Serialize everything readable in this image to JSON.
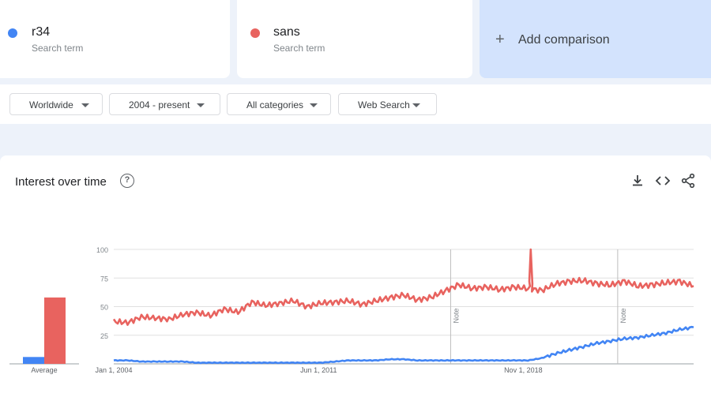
{
  "terms": [
    {
      "name": "r34",
      "subtitle": "Search term",
      "color": "#4285f4"
    },
    {
      "name": "sans",
      "subtitle": "Search term",
      "color": "#e8635f"
    }
  ],
  "add_comparison": {
    "label": "Add comparison",
    "icon": "plus-icon"
  },
  "filters": {
    "region": "Worldwide",
    "time": "2004 - present",
    "category": "All categories",
    "property": "Web Search"
  },
  "panel": {
    "title": "Interest over time",
    "icons": [
      "help-icon",
      "download-icon",
      "embed-code-icon",
      "share-icon"
    ]
  },
  "chart_data": [
    {
      "type": "bar",
      "categories": [
        "Average"
      ],
      "series": [
        {
          "name": "r34",
          "values": [
            6
          ],
          "color": "#4285f4"
        },
        {
          "name": "sans",
          "values": [
            58
          ],
          "color": "#e8635f"
        }
      ],
      "ylim": [
        0,
        100
      ]
    },
    {
      "type": "line",
      "x_tick_labels": [
        "Jan 1, 2004",
        "Jun 1, 2011",
        "Nov 1, 2018"
      ],
      "y_ticks": [
        25,
        50,
        75,
        100
      ],
      "ylim": [
        0,
        100
      ],
      "grid": true,
      "annotations": [
        "Note",
        "Note"
      ],
      "x": [
        2004.0,
        2004.5,
        2005.0,
        2005.5,
        2006.0,
        2006.5,
        2007.0,
        2007.5,
        2008.0,
        2008.5,
        2009.0,
        2009.5,
        2010.0,
        2010.5,
        2011.0,
        2011.5,
        2012.0,
        2012.5,
        2013.0,
        2013.5,
        2014.0,
        2014.5,
        2015.0,
        2015.5,
        2016.0,
        2016.5,
        2017.0,
        2017.5,
        2018.0,
        2018.5,
        2019.0,
        2019.5,
        2020.0,
        2020.5,
        2021.0,
        2021.5,
        2022.0,
        2022.5,
        2023.0,
        2023.5,
        2024.0,
        2024.5,
        2025.0
      ],
      "series": [
        {
          "name": "r34",
          "color": "#4285f4",
          "values": [
            3,
            3,
            2,
            2,
            2,
            2,
            1,
            1,
            1,
            1,
            1,
            1,
            1,
            1,
            1,
            1,
            2,
            3,
            3,
            3,
            4,
            4,
            3,
            3,
            3,
            3,
            3,
            3,
            3,
            3,
            3,
            5,
            9,
            12,
            15,
            18,
            20,
            22,
            23,
            25,
            27,
            30,
            32
          ]
        },
        {
          "name": "sans",
          "color": "#e8635f",
          "values": [
            37,
            36,
            41,
            40,
            39,
            43,
            45,
            42,
            48,
            45,
            54,
            51,
            53,
            55,
            50,
            53,
            54,
            55,
            52,
            55,
            58,
            60,
            56,
            58,
            64,
            69,
            66,
            67,
            65,
            67,
            66,
            64,
            70,
            72,
            73,
            70,
            69,
            72,
            68,
            69,
            71,
            72,
            68
          ]
        }
      ]
    }
  ]
}
